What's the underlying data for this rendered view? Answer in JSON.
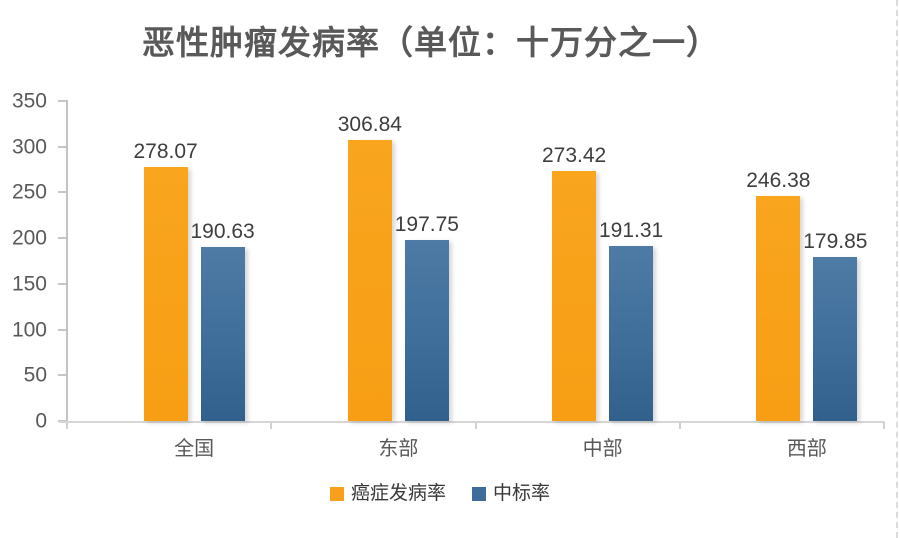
{
  "title": "恶性肿瘤发病率（单位：十万分之一）",
  "colors": {
    "series1_orange": "#F8A01B",
    "series2_blue": "#3F6D9B",
    "axis_line": "#C6C6C6",
    "text_gray": "#595959",
    "value_label": "#3E3E3E"
  },
  "chart_data": {
    "type": "bar",
    "title": "恶性肿瘤发病率（单位：十万分之一）",
    "categories": [
      "全国",
      "东部",
      "中部",
      "西部"
    ],
    "series": [
      {
        "id": "cancer-incidence",
        "name": "癌症发病率",
        "color": "#F8A01B",
        "values": [
          278.07,
          306.84,
          273.42,
          246.38
        ]
      },
      {
        "id": "standardized-rate",
        "name": "中标率",
        "color": "#3F6D9B",
        "values": [
          190.63,
          197.75,
          191.31,
          179.85
        ]
      }
    ],
    "value_labels": [
      [
        "278.07",
        "306.84",
        "273.42",
        "246.38"
      ],
      [
        "190.63",
        "197.75",
        "191.31",
        "179.85"
      ]
    ],
    "xlabel": "",
    "ylabel": "",
    "ylim": [
      0,
      350
    ],
    "yticks": [
      0,
      50,
      100,
      150,
      200,
      250,
      300,
      350
    ],
    "grid": false,
    "legend_position": "bottom",
    "data_labels": true
  }
}
